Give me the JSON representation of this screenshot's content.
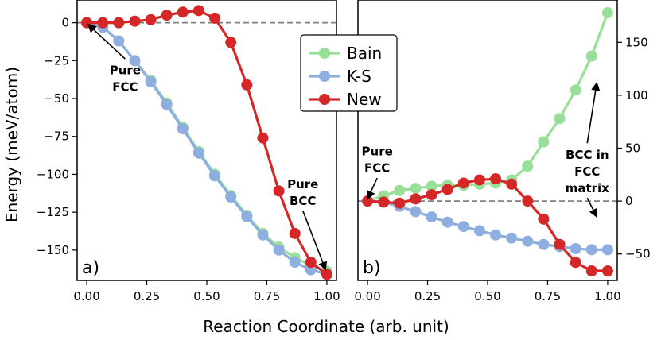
{
  "xlabel": "Reaction Coordinate (arb. unit)",
  "ylabel": "Energy (meV/atom)",
  "colors": {
    "Bain": "#98e098",
    "K-S": "#8eaee0",
    "New": "#d62728",
    "zero_line": "#808080"
  },
  "legend": {
    "placement": "upper-center",
    "entries": [
      "Bain",
      "K-S",
      "New"
    ]
  },
  "chart_data": [
    {
      "type": "line",
      "panel_label": "a)",
      "xlim": [
        -0.04,
        1.04
      ],
      "ylim": [
        -170,
        15
      ],
      "x_ticks": [
        "0.00",
        "0.25",
        "0.50",
        "0.75",
        "1.00"
      ],
      "x_tick_values": [
        0,
        0.25,
        0.5,
        0.75,
        1.0
      ],
      "y_ticks": [
        "0",
        "−25",
        "−50",
        "−75",
        "−100",
        "−125",
        "−150"
      ],
      "y_tick_values": [
        0,
        -25,
        -50,
        -75,
        -100,
        -125,
        -150
      ],
      "y_axis_side": "left",
      "zero_line": true,
      "x": [
        0.0,
        0.0667,
        0.1333,
        0.2,
        0.2667,
        0.3333,
        0.4,
        0.4667,
        0.5333,
        0.6,
        0.6667,
        0.7333,
        0.8,
        0.8667,
        0.9333,
        1.0
      ],
      "series": [
        {
          "name": "Bain",
          "values": [
            0,
            -3,
            -12,
            -25,
            -38,
            -53,
            -69,
            -85,
            -100,
            -114,
            -127,
            -139,
            -148,
            -155,
            -160,
            -164
          ]
        },
        {
          "name": "K-S",
          "values": [
            0,
            -3,
            -12,
            -25,
            -39,
            -54,
            -70,
            -86,
            -101,
            -115,
            -128,
            -140,
            -150,
            -158,
            -163,
            -166
          ]
        },
        {
          "name": "New",
          "values": [
            0,
            0,
            0,
            1,
            2,
            5,
            7,
            8,
            3,
            -13,
            -41,
            -76,
            -111,
            -139,
            -158,
            -166
          ]
        }
      ],
      "annotations": [
        {
          "lines": [
            "Pure",
            "FCC"
          ],
          "x_text": 0.16,
          "y_text": -37,
          "x_arrow": 0.005,
          "y_arrow": -1
        },
        {
          "lines": [
            "Pure",
            "BCC"
          ],
          "x_text": 0.9,
          "y_text": -112,
          "x_arrow": 0.995,
          "y_arrow": -163
        }
      ]
    },
    {
      "type": "line",
      "panel_label": "b)",
      "xlim": [
        -0.04,
        1.04
      ],
      "ylim": [
        -75,
        190
      ],
      "x_ticks": [
        "0.00",
        "0.25",
        "0.50",
        "0.75",
        "1.00"
      ],
      "x_tick_values": [
        0,
        0.25,
        0.5,
        0.75,
        1.0
      ],
      "y_ticks": [
        "−50",
        "0",
        "50",
        "100",
        "150"
      ],
      "y_tick_values": [
        -50,
        0,
        50,
        100,
        150
      ],
      "y_axis_side": "right",
      "zero_line": true,
      "x": [
        0.0,
        0.0667,
        0.1333,
        0.2,
        0.2667,
        0.3333,
        0.4,
        0.4667,
        0.5333,
        0.6,
        0.6667,
        0.7333,
        0.8,
        0.8667,
        0.9333,
        1.0
      ],
      "series": [
        {
          "name": "Bain",
          "values": [
            0,
            5,
            10,
            12,
            14,
            15,
            15,
            16,
            17,
            20,
            33,
            56,
            78,
            105,
            137,
            178
          ]
        },
        {
          "name": "K-S",
          "values": [
            0,
            -1,
            -5,
            -10,
            -15,
            -20,
            -24,
            -28,
            -32,
            -35,
            -38,
            -41,
            -43,
            -45,
            -46,
            -46
          ]
        },
        {
          "name": "New",
          "values": [
            0,
            -1,
            -2,
            2,
            6,
            11,
            17,
            20,
            21,
            16,
            0,
            -17,
            -41,
            -58,
            -66,
            -66
          ]
        }
      ],
      "annotations": [
        {
          "lines": [
            "Pure",
            "FCC"
          ],
          "x_text": 0.04,
          "y_text": 39,
          "x_arrow": 0.0,
          "y_arrow": 2
        },
        {
          "lines": [
            "BCC in",
            "FCC",
            "matrix"
          ],
          "x_text": 0.915,
          "y_text": 28,
          "x_arrow": 0.955,
          "y_arrow": 112,
          "x_arrow2": 0.955,
          "y_arrow2": -15
        }
      ]
    }
  ]
}
